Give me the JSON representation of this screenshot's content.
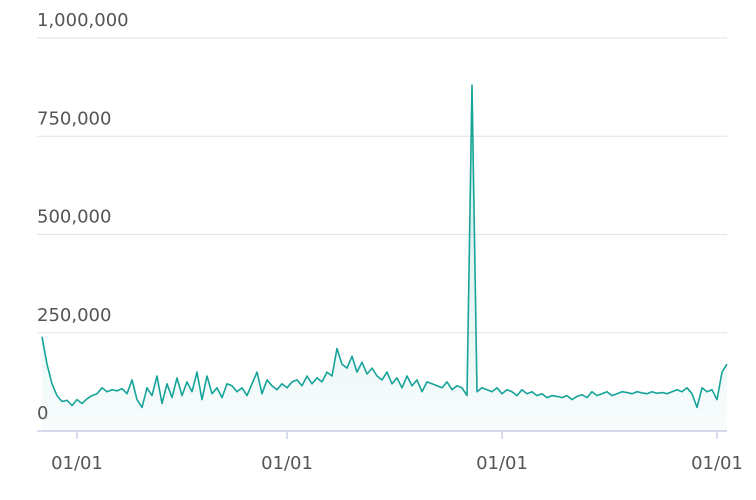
{
  "chart_data": {
    "type": "area",
    "series": [
      {
        "color": "#16a39a",
        "values": [
          240000,
          170000,
          120000,
          90000,
          75000,
          78000,
          65000,
          80000,
          70000,
          82000,
          90000,
          95000,
          110000,
          100000,
          105000,
          102000,
          108000,
          95000,
          130000,
          80000,
          60000,
          110000,
          90000,
          140000,
          70000,
          120000,
          85000,
          135000,
          90000,
          125000,
          100000,
          150000,
          80000,
          140000,
          95000,
          110000,
          85000,
          120000,
          115000,
          100000,
          110000,
          90000,
          120000,
          150000,
          95000,
          130000,
          115000,
          105000,
          120000,
          110000,
          125000,
          130000,
          115000,
          140000,
          120000,
          135000,
          125000,
          150000,
          140000,
          210000,
          170000,
          160000,
          190000,
          150000,
          175000,
          145000,
          160000,
          140000,
          130000,
          150000,
          120000,
          135000,
          110000,
          140000,
          115000,
          130000,
          100000,
          125000,
          120000,
          115000,
          110000,
          125000,
          105000,
          115000,
          110000,
          90000,
          880000,
          100000,
          110000,
          105000,
          100000,
          110000,
          95000,
          105000,
          100000,
          90000,
          105000,
          95000,
          100000,
          90000,
          95000,
          85000,
          90000,
          88000,
          85000,
          90000,
          80000,
          88000,
          92000,
          85000,
          100000,
          90000,
          95000,
          100000,
          90000,
          95000,
          100000,
          98000,
          95000,
          100000,
          97000,
          95000,
          100000,
          96000,
          98000,
          95000,
          100000,
          105000,
          100000,
          110000,
          95000,
          60000,
          110000,
          100000,
          105000,
          80000,
          150000,
          170000
        ]
      }
    ],
    "categories": [
      null,
      null,
      null,
      null,
      null,
      null,
      null,
      "01/01",
      null,
      null,
      null,
      null,
      null,
      null,
      null,
      null,
      null,
      null,
      null,
      null,
      null,
      null,
      null,
      null,
      null,
      null,
      null,
      null,
      null,
      null,
      null,
      null,
      null,
      null,
      null,
      null,
      null,
      null,
      null,
      null,
      null,
      null,
      null,
      null,
      null,
      null,
      null,
      null,
      null,
      "01/01",
      null,
      null,
      null,
      null,
      null,
      null,
      null,
      null,
      null,
      null,
      null,
      null,
      null,
      null,
      null,
      null,
      null,
      null,
      null,
      null,
      null,
      null,
      null,
      null,
      null,
      null,
      null,
      null,
      null,
      null,
      null,
      null,
      null,
      null,
      null,
      null,
      null,
      null,
      null,
      null,
      null,
      null,
      "01/01",
      null,
      null,
      null,
      null,
      null,
      null,
      null,
      null,
      null,
      null,
      null,
      null,
      null,
      null,
      null,
      null,
      null,
      null,
      null,
      null,
      null,
      null,
      null,
      null,
      null,
      null,
      null,
      null,
      null,
      null,
      null,
      null,
      null,
      null,
      null,
      null,
      null,
      null,
      null,
      null,
      null,
      null,
      "01/01",
      null,
      null
    ],
    "ylim": [
      0,
      1000000
    ],
    "yticks": [
      0,
      {
        "value": 250000,
        "label": "250,000"
      },
      {
        "value": 500000,
        "label": "500,000"
      },
      {
        "value": 750000,
        "label": "750,000"
      },
      {
        "value": 1000000,
        "label": "1,000,000"
      }
    ],
    "grid": true
  }
}
